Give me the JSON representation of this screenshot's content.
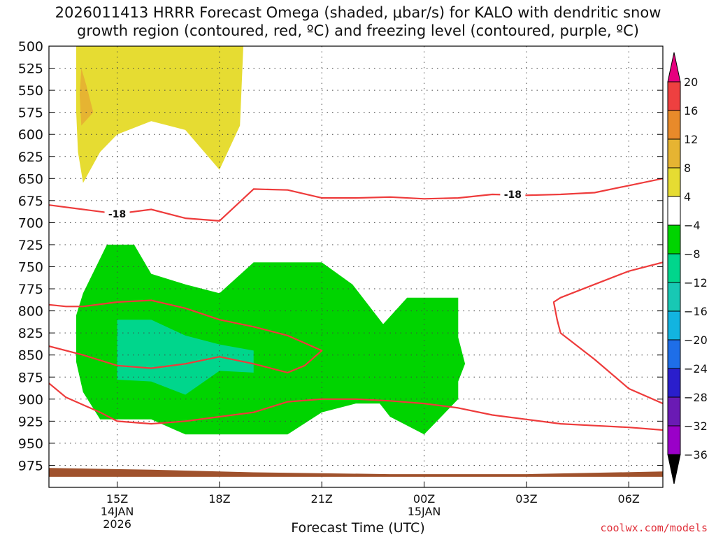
{
  "title": {
    "line1": "2026011413 HRRR Forecast Omega (shaded, μbar/s) for KALO with dendritic snow",
    "line2": "growth region (contoured, red, ºC) and freezing level (contoured, purple, ºC)"
  },
  "credit": "coolwx.com/models",
  "colors": {
    "dgz_contour": "#ee3b3b",
    "terrain": "#a0522d",
    "grid": "#444444"
  },
  "chart_data": {
    "type": "heatmap",
    "title": "2026011413 HRRR Forecast Omega (shaded, μbar/s) for KALO with dendritic snow growth region (contoured, red, ºC) and freezing level (contoured, purple, ºC)",
    "xlabel": "Forecast Time (UTC)",
    "ylabel": "",
    "x_unit": "hours since 2026-01-14 13Z",
    "xlim": [
      0,
      18
    ],
    "ylim": [
      500,
      1000
    ],
    "y_reversed": true,
    "grid": true,
    "x_ticks": [
      {
        "x": 2,
        "label": "15Z",
        "sub1": "14JAN",
        "sub2": "2026"
      },
      {
        "x": 5,
        "label": "18Z",
        "sub1": "",
        "sub2": ""
      },
      {
        "x": 8,
        "label": "21Z",
        "sub1": "",
        "sub2": ""
      },
      {
        "x": 11,
        "label": "00Z",
        "sub1": "15JAN",
        "sub2": ""
      },
      {
        "x": 14,
        "label": "03Z",
        "sub1": "",
        "sub2": ""
      },
      {
        "x": 17,
        "label": "06Z",
        "sub1": "",
        "sub2": ""
      }
    ],
    "y_ticks": [
      500,
      525,
      550,
      575,
      600,
      625,
      650,
      675,
      700,
      725,
      750,
      775,
      800,
      825,
      850,
      875,
      900,
      925,
      950,
      975
    ],
    "colorbar": {
      "levels": [
        -36,
        -32,
        -28,
        -24,
        -20,
        -16,
        -12,
        -8,
        -4,
        4,
        8,
        12,
        16,
        20
      ],
      "labels": [
        "20",
        "16",
        "12",
        "8",
        "4",
        "−4",
        "−8",
        "−12",
        "−16",
        "−20",
        "−24",
        "−28",
        "−32",
        "−36"
      ],
      "colors": [
        "#9e9e9e",
        "#9a00c8",
        "#6a1ab4",
        "#2a1ecc",
        "#1e6ee8",
        "#12b4e0",
        "#18c8b4",
        "#00d68c",
        "#00d400",
        "#ffffff",
        "#e6dc32",
        "#e6b432",
        "#e88a2a",
        "#ee4040",
        "#e6007e"
      ]
    },
    "shaded_regions": [
      {
        "name": "omega 4 to 8",
        "color": "#e6dc32",
        "points": [
          [
            0.8,
            500
          ],
          [
            0.8,
            575
          ],
          [
            0.85,
            620
          ],
          [
            1.0,
            655
          ],
          [
            1.5,
            620
          ],
          [
            2.0,
            600
          ],
          [
            3.0,
            585
          ],
          [
            4.0,
            595
          ],
          [
            5.0,
            640
          ],
          [
            5.6,
            590
          ],
          [
            5.7,
            500
          ]
        ]
      },
      {
        "name": "omega 8 to 12",
        "color": "#e6b432",
        "points": [
          [
            0.95,
            525
          ],
          [
            1.1,
            545
          ],
          [
            1.3,
            575
          ],
          [
            0.95,
            590
          ],
          [
            0.9,
            555
          ]
        ]
      },
      {
        "name": "omega -8 to -4",
        "color": "#00d400",
        "points": [
          [
            0.8,
            805
          ],
          [
            0.8,
            858
          ],
          [
            1.0,
            892
          ],
          [
            1.5,
            923
          ],
          [
            3.0,
            923
          ],
          [
            4.0,
            940
          ],
          [
            6.0,
            940
          ],
          [
            7.0,
            940
          ],
          [
            8.0,
            915
          ],
          [
            9.0,
            905
          ],
          [
            9.7,
            905
          ],
          [
            10.0,
            920
          ],
          [
            11.0,
            940
          ],
          [
            12.0,
            900
          ],
          [
            12.0,
            880
          ],
          [
            12.2,
            860
          ],
          [
            12.0,
            830
          ],
          [
            12.0,
            785
          ],
          [
            10.5,
            785
          ],
          [
            9.8,
            815
          ],
          [
            8.9,
            770
          ],
          [
            8.0,
            745
          ],
          [
            6.0,
            745
          ],
          [
            5.0,
            780
          ],
          [
            4.0,
            770
          ],
          [
            3.0,
            758
          ],
          [
            2.5,
            725
          ],
          [
            1.7,
            725
          ],
          [
            1.0,
            780
          ]
        ]
      },
      {
        "name": "omega -12 to -8",
        "color": "#00d68c",
        "points": [
          [
            2.0,
            810
          ],
          [
            2.0,
            878
          ],
          [
            3.0,
            880
          ],
          [
            4.0,
            895
          ],
          [
            5.0,
            868
          ],
          [
            6.0,
            870
          ],
          [
            6.0,
            845
          ],
          [
            5.0,
            838
          ],
          [
            4.0,
            828
          ],
          [
            3.0,
            810
          ]
        ]
      }
    ],
    "contours": [
      {
        "label": "-18",
        "label_at": [
          2.0,
          690
        ],
        "points": [
          [
            0,
            680
          ],
          [
            1.0,
            685
          ],
          [
            2.0,
            690
          ],
          [
            3.0,
            685
          ],
          [
            4.0,
            695
          ],
          [
            5.0,
            698
          ],
          [
            6.0,
            662
          ],
          [
            7.0,
            663
          ],
          [
            8.0,
            672
          ],
          [
            9.0,
            672
          ],
          [
            10.0,
            671
          ],
          [
            11.0,
            673
          ],
          [
            12.0,
            672
          ],
          [
            13.0,
            668
          ],
          [
            14.0,
            669
          ],
          [
            15.0,
            668
          ],
          [
            16.0,
            666
          ],
          [
            17.0,
            658
          ],
          [
            18.0,
            650
          ]
        ]
      },
      {
        "label": "",
        "points": [
          [
            0,
            793
          ],
          [
            0.5,
            795
          ],
          [
            1.0,
            795
          ],
          [
            2.0,
            790
          ],
          [
            3.0,
            788
          ],
          [
            4.0,
            797
          ],
          [
            5.0,
            810
          ],
          [
            6.0,
            818
          ],
          [
            7.0,
            828
          ],
          [
            8.0,
            845
          ],
          [
            7.5,
            862
          ],
          [
            7.0,
            870
          ],
          [
            6.0,
            860
          ],
          [
            5.0,
            852
          ],
          [
            4.0,
            860
          ],
          [
            3.0,
            865
          ],
          [
            2.0,
            862
          ],
          [
            1.0,
            850
          ],
          [
            0,
            840
          ]
        ]
      },
      {
        "label": "",
        "points": [
          [
            0,
            882
          ],
          [
            0.5,
            898
          ],
          [
            1.5,
            915
          ],
          [
            2.0,
            925
          ],
          [
            3.0,
            928
          ],
          [
            4.0,
            925
          ],
          [
            5.0,
            920
          ],
          [
            6.0,
            915
          ],
          [
            7.0,
            903
          ],
          [
            8.0,
            900
          ],
          [
            9.0,
            900
          ],
          [
            10.0,
            902
          ],
          [
            11.0,
            905
          ],
          [
            12.0,
            910
          ],
          [
            13.0,
            918
          ],
          [
            14.0,
            923
          ],
          [
            15.0,
            928
          ],
          [
            16.0,
            930
          ],
          [
            17.0,
            932
          ],
          [
            18.0,
            935
          ]
        ]
      },
      {
        "label": "",
        "points": [
          [
            18.0,
            745
          ],
          [
            17.0,
            755
          ],
          [
            16.0,
            770
          ],
          [
            15.0,
            785
          ],
          [
            14.8,
            790
          ],
          [
            14.9,
            810
          ],
          [
            15.0,
            825
          ],
          [
            16.0,
            855
          ],
          [
            17.0,
            888
          ],
          [
            18.0,
            905
          ]
        ]
      }
    ],
    "terrain_top": [
      [
        0,
        978
      ],
      [
        3.0,
        980
      ],
      [
        6.0,
        983
      ],
      [
        10.0,
        985
      ],
      [
        14.0,
        985
      ],
      [
        18.0,
        982
      ]
    ],
    "terrain_bottom": 988
  }
}
